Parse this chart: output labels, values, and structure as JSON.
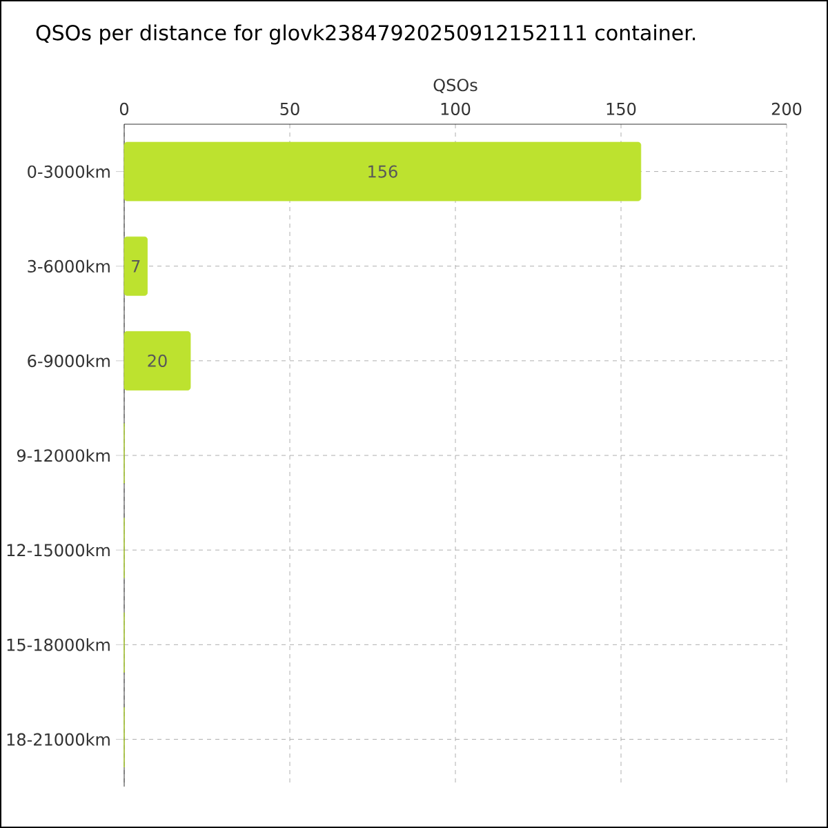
{
  "chart_data": {
    "type": "bar",
    "orientation": "horizontal",
    "title": "QSOs per distance for glovk23847920250912152111 container.",
    "xlabel": "QSOs",
    "categories": [
      "0-3000km",
      "3-6000km",
      "6-9000km",
      "9-12000km",
      "12-15000km",
      "15-18000km",
      "18-21000km"
    ],
    "values": [
      156,
      7,
      20,
      0,
      0,
      0,
      0
    ],
    "value_labels": [
      "156",
      "7",
      "20",
      null,
      null,
      null,
      null
    ],
    "color": "#bde22f",
    "xlim": [
      0,
      200
    ],
    "xticks": [
      0,
      50,
      100,
      150,
      200
    ],
    "grid": true
  }
}
